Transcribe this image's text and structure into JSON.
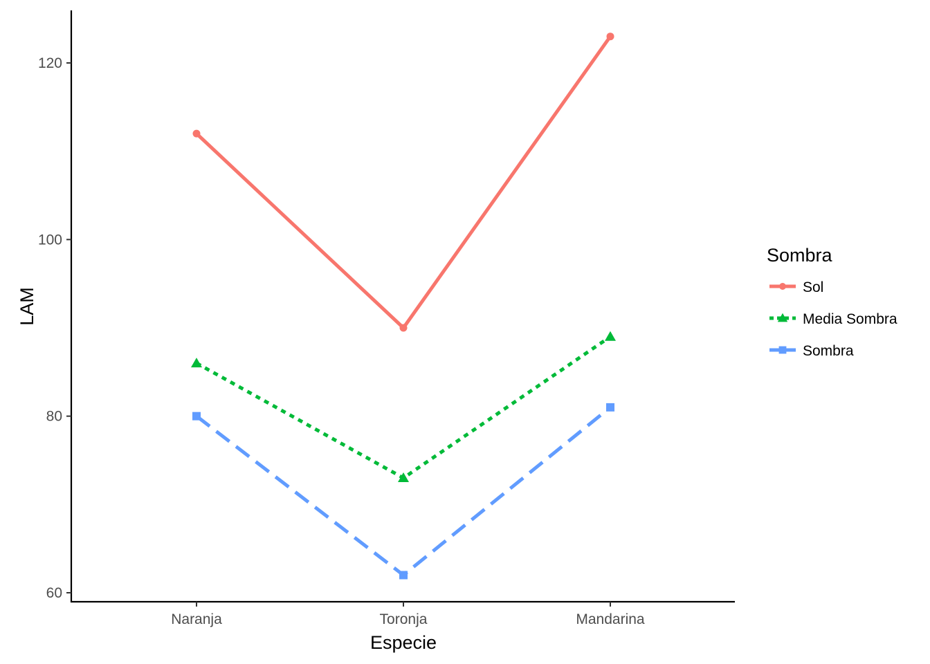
{
  "chart_data": {
    "type": "line",
    "categories": [
      "Naranja",
      "Toronja",
      "Mandarina"
    ],
    "xlabel": "Especie",
    "ylabel": "LAM",
    "ylim": [
      59,
      126
    ],
    "yticks": [
      60,
      80,
      100,
      120
    ],
    "grid": false,
    "legend": {
      "title": "Sombra",
      "position": "right"
    },
    "series": [
      {
        "name": "Sol",
        "values": [
          112,
          90,
          123
        ],
        "color": "#F8766D",
        "marker": "circle",
        "linestyle": "solid"
      },
      {
        "name": "Media Sombra",
        "values": [
          86,
          73,
          89
        ],
        "color": "#00BA38",
        "marker": "triangle",
        "linestyle": "dotted"
      },
      {
        "name": "Sombra",
        "values": [
          80,
          62,
          81
        ],
        "color": "#619CFF",
        "marker": "square",
        "linestyle": "dashed"
      }
    ]
  }
}
